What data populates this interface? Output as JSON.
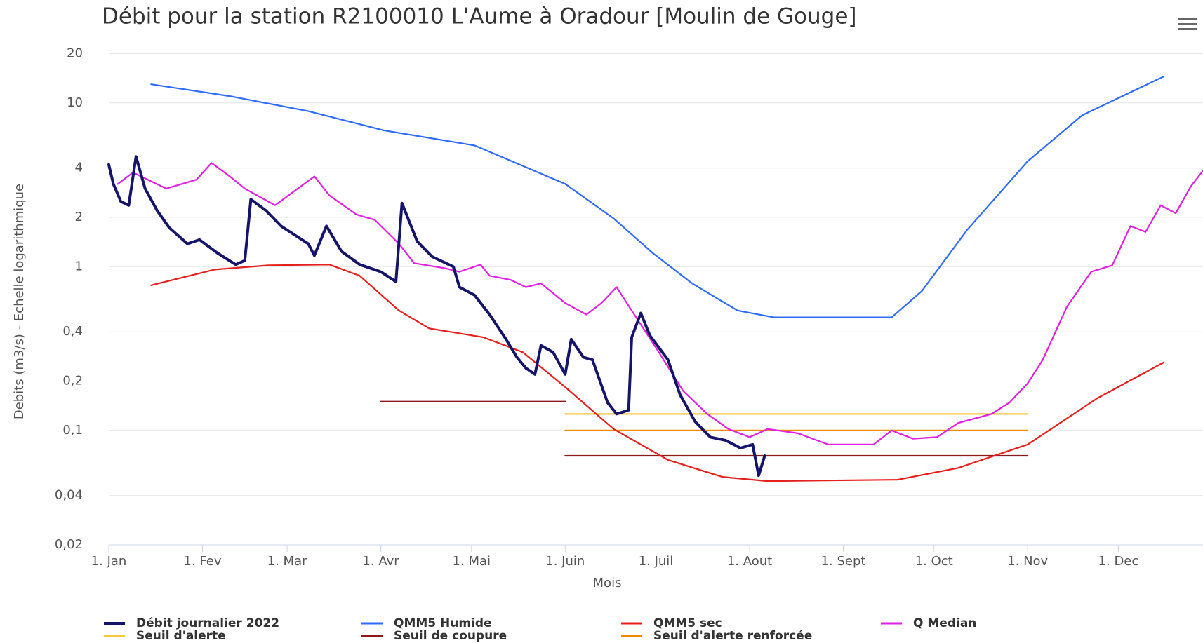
{
  "chart_data": {
    "type": "line",
    "title": "Débit pour la station R2100010 L'Aume à Oradour [Moulin de Gouge]",
    "x_label": "Mois",
    "y_label": "Debits (m3/s) - Echelle logarithmique",
    "log_y": true,
    "grid": true,
    "xlim": [
      0,
      362
    ],
    "xticks": [
      {
        "value": 0,
        "label": "1. Jan"
      },
      {
        "value": 31,
        "label": "1. Fev"
      },
      {
        "value": 59,
        "label": "1. Mar"
      },
      {
        "value": 90,
        "label": "1. Avr"
      },
      {
        "value": 120,
        "label": "1. Mai"
      },
      {
        "value": 151,
        "label": "1. Juin"
      },
      {
        "value": 181,
        "label": "1. Juil"
      },
      {
        "value": 212,
        "label": "1. Aout"
      },
      {
        "value": 243,
        "label": "1. Sept"
      },
      {
        "value": 273,
        "label": "1. Oct"
      },
      {
        "value": 304,
        "label": "1. Nov"
      },
      {
        "value": 334,
        "label": "1. Dec"
      }
    ],
    "ylim": [
      0.02,
      20
    ],
    "yticks": [
      {
        "value": 0.02,
        "label": "0,02"
      },
      {
        "value": 0.04,
        "label": "0,04"
      },
      {
        "value": 0.1,
        "label": "0,1"
      },
      {
        "value": 0.2,
        "label": "0,2"
      },
      {
        "value": 0.4,
        "label": "0,4"
      },
      1,
      2,
      4,
      10,
      20
    ],
    "series": [
      {
        "name": "Débit journalier 2022",
        "color": "#14146b",
        "width": 4,
        "x": [
          0,
          1.5,
          4,
          6.6,
          9,
          12,
          16,
          20,
          26,
          30,
          36,
          42,
          45,
          47,
          52,
          57,
          62,
          66,
          68,
          72,
          77,
          83,
          90,
          95,
          97,
          102,
          107,
          114,
          116,
          121,
          126,
          131,
          135,
          138,
          141,
          143,
          147,
          151,
          153,
          157,
          160,
          165,
          168,
          172,
          173,
          176,
          179,
          185,
          189,
          194,
          199,
          204,
          209,
          213,
          215,
          217
        ],
        "values": [
          4.2,
          3.2,
          2.5,
          2.37,
          4.7,
          3.0,
          2.2,
          1.73,
          1.38,
          1.46,
          1.21,
          1.03,
          1.09,
          2.58,
          2.2,
          1.77,
          1.54,
          1.38,
          1.17,
          1.77,
          1.24,
          1.03,
          0.93,
          0.81,
          2.44,
          1.43,
          1.15,
          1.0,
          0.75,
          0.67,
          0.51,
          0.37,
          0.28,
          0.24,
          0.22,
          0.33,
          0.3,
          0.22,
          0.36,
          0.28,
          0.27,
          0.148,
          0.126,
          0.133,
          0.37,
          0.52,
          0.38,
          0.27,
          0.165,
          0.113,
          0.091,
          0.087,
          0.078,
          0.082,
          0.053,
          0.07
        ]
      },
      {
        "name": "QMM5 Humide",
        "color": "#2f6bff",
        "width": 2.2,
        "x": [
          14,
          40,
          66,
          91,
          121,
          151,
          167,
          180,
          193,
          208,
          220,
          259,
          269,
          284,
          304,
          322,
          349
        ],
        "values": [
          13.0,
          11.0,
          8.9,
          6.8,
          5.5,
          3.2,
          1.97,
          1.21,
          0.79,
          0.54,
          0.49,
          0.49,
          0.71,
          1.68,
          4.4,
          8.4,
          14.5
        ]
      },
      {
        "name": "QMM5 sec",
        "color": "#e3201b",
        "width": 2.2,
        "x": [
          14,
          35,
          53,
          73,
          83,
          96,
          106,
          124,
          137,
          151,
          167,
          185,
          203,
          218,
          261,
          281,
          304,
          327,
          349
        ],
        "values": [
          0.77,
          0.96,
          1.02,
          1.03,
          0.88,
          0.54,
          0.42,
          0.37,
          0.3,
          0.184,
          0.102,
          0.066,
          0.052,
          0.049,
          0.05,
          0.059,
          0.082,
          0.157,
          0.26
        ]
      },
      {
        "name": "Q Median",
        "color": "#e020e0",
        "width": 2.2,
        "x": [
          3,
          8,
          19,
          29,
          34,
          40,
          45,
          55,
          68,
          73,
          82,
          88,
          96,
          101,
          111,
          116,
          123,
          126,
          133,
          138,
          143,
          151,
          158,
          163,
          168,
          173,
          182,
          190,
          198,
          205,
          212,
          218,
          228,
          238,
          253,
          259,
          266,
          274,
          281,
          292,
          298,
          304,
          309,
          317,
          325,
          332,
          338,
          343,
          348,
          353,
          358,
          362
        ],
        "values": [
          3.2,
          3.76,
          3.0,
          3.4,
          4.3,
          3.56,
          3.0,
          2.37,
          3.56,
          2.72,
          2.08,
          1.93,
          1.38,
          1.05,
          0.98,
          0.93,
          1.03,
          0.88,
          0.83,
          0.75,
          0.79,
          0.6,
          0.51,
          0.6,
          0.75,
          0.54,
          0.3,
          0.174,
          0.126,
          0.102,
          0.091,
          0.102,
          0.096,
          0.082,
          0.082,
          0.1,
          0.089,
          0.091,
          0.111,
          0.126,
          0.148,
          0.194,
          0.27,
          0.57,
          0.93,
          1.02,
          1.77,
          1.63,
          2.37,
          2.12,
          3.1,
          3.85
        ]
      },
      {
        "name": "Seuil d'alerte",
        "color": "#f5c542",
        "width": 2.2,
        "x": [
          151,
          304
        ],
        "values": [
          0.126,
          0.126
        ]
      },
      {
        "name": "Seuil de coupure",
        "color": "#8b1a1a",
        "width": 2.2,
        "x": [
          90,
          151,
          151,
          151,
          304
        ],
        "values": [
          0.15,
          0.15,
          null,
          0.07,
          0.07
        ]
      },
      {
        "name": "Seuil d'alerte renforcée",
        "color": "#f08a00",
        "width": 2.2,
        "x": [
          151,
          304
        ],
        "values": [
          0.1,
          0.1
        ]
      }
    ]
  }
}
